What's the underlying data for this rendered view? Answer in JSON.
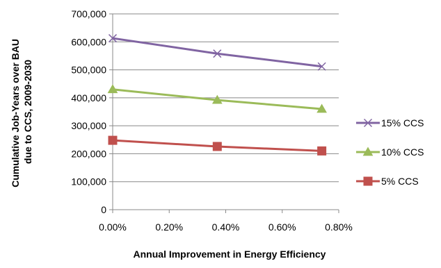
{
  "chart_data": {
    "type": "line",
    "title": "",
    "xlabel": "Annual Improvement in Energy Efficiency",
    "ylabel_lines": [
      "Cumulative Job-Years over BAU",
      "due to CCS, 2009-2030"
    ],
    "xlim": [
      0,
      0.8
    ],
    "ylim": [
      0,
      700000
    ],
    "x_ticks": [
      0,
      0.2,
      0.4,
      0.6,
      0.8
    ],
    "x_tick_labels": [
      "0.00%",
      "0.20%",
      "0.40%",
      "0.60%",
      "0.80%"
    ],
    "y_ticks": [
      0,
      100000,
      200000,
      300000,
      400000,
      500000,
      600000,
      700000
    ],
    "y_tick_labels": [
      "0",
      "100,000",
      "200,000",
      "300,000",
      "400,000",
      "500,000",
      "600,000",
      "700,000"
    ],
    "grid": "horizontal",
    "legend_position": "right",
    "x": [
      0,
      0.37,
      0.74
    ],
    "series": [
      {
        "name": "15% CCS",
        "marker": "x",
        "color": "#8064A2",
        "values": [
          613000,
          558000,
          512000
        ]
      },
      {
        "name": "10% CCS",
        "marker": "triangle",
        "color": "#9BBB59",
        "values": [
          430000,
          392000,
          360000
        ]
      },
      {
        "name": "5% CCS",
        "marker": "square",
        "color": "#C0504D",
        "values": [
          248000,
          226000,
          210000
        ]
      }
    ]
  }
}
